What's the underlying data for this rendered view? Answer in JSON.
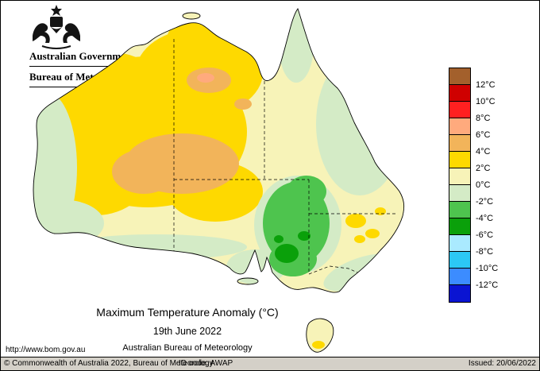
{
  "branding": {
    "government": "Australian Government",
    "bureau": "Bureau of Meteorology"
  },
  "caption": {
    "title": "Maximum Temperature Anomaly (°C)",
    "date": "19th June 2022",
    "source": "Australian Bureau of Meteorology"
  },
  "url": "http://www.bom.gov.au",
  "footer": {
    "copyright": "© Commonwealth of Australia 2022, Bureau of Meteorology",
    "id_code": "ID code: AWAP",
    "issued": "Issued: 20/06/2022"
  },
  "palette": {
    "brown": "#a3602c",
    "dark_red": "#cf0000",
    "red": "#ff2020",
    "salmon": "#ffaa7d",
    "orange": "#f2b45a",
    "yellow": "#fed900",
    "pale_yellow": "#f7f3b8",
    "pale_green": "#d4ebc6",
    "green": "#4ec44e",
    "dark_green": "#0aa00a",
    "pale_cyan": "#aaeaff",
    "cyan": "#2cc8f5",
    "light_blue": "#3c8cff",
    "blue": "#0a14d2",
    "footer_bg": "#d4d0c8"
  },
  "legend": {
    "labels": [
      "12°C",
      "10°C",
      "8°C",
      "6°C",
      "4°C",
      "2°C",
      "0°C",
      "-2°C",
      "-4°C",
      "-6°C",
      "-8°C",
      "-10°C",
      "-12°C"
    ],
    "colors": [
      "#a3602c",
      "#cf0000",
      "#ff2020",
      "#ffaa7d",
      "#f2b45a",
      "#fed900",
      "#f7f3b8",
      "#d4ebc6",
      "#4ec44e",
      "#0aa00a",
      "#aaeaff",
      "#2cc8f5",
      "#3c8cff",
      "#0a14d2"
    ]
  }
}
